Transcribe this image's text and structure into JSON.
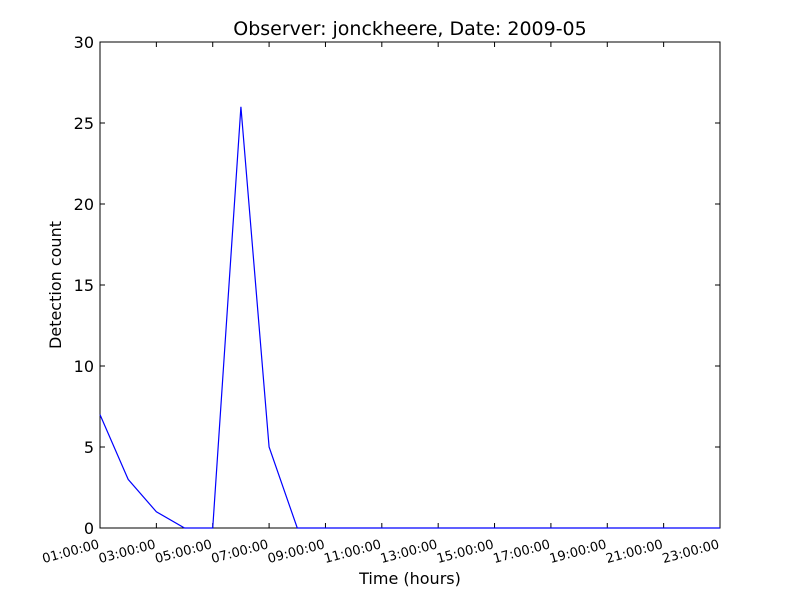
{
  "chart_data": {
    "type": "line",
    "title": "Observer: jonckheere, Date: 2009-05",
    "xlabel": "Time (hours)",
    "ylabel": "Detection count",
    "ylim": [
      0,
      30
    ],
    "xlim": [
      1,
      23
    ],
    "y_ticks": [
      "0",
      "5",
      "10",
      "15",
      "20",
      "25",
      "30"
    ],
    "x_ticks": [
      "01:00:00",
      "03:00:00",
      "05:00:00",
      "07:00:00",
      "09:00:00",
      "11:00:00",
      "13:00:00",
      "15:00:00",
      "17:00:00",
      "19:00:00",
      "21:00:00",
      "23:00:00"
    ],
    "grid": false,
    "series": [
      {
        "color": "#0000ff",
        "x": [
          1,
          2,
          3,
          4,
          5,
          6,
          7,
          8,
          9,
          10,
          11,
          12,
          13,
          14,
          15,
          16,
          17,
          18,
          19,
          20,
          21,
          22,
          23
        ],
        "values": [
          7,
          3,
          1,
          0,
          0,
          26,
          5,
          0,
          0,
          0,
          0,
          0,
          0,
          0,
          0,
          0,
          0,
          0,
          0,
          0,
          0,
          0,
          0
        ]
      }
    ]
  }
}
